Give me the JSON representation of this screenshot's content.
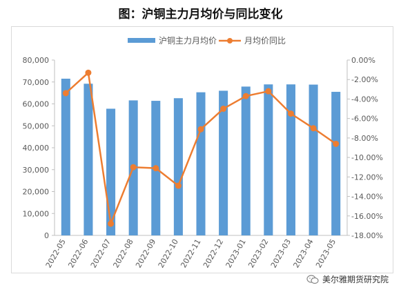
{
  "title": "图：沪铜主力月均价与同比变化",
  "watermark": {
    "text": "美尔雅期货研究院",
    "icon": "wechat-icon"
  },
  "colors": {
    "bar": "#5b9bd5",
    "line": "#ed7d31",
    "axis_text": "#595959",
    "axis_line": "#bfbfbf"
  },
  "chart_data": {
    "type": "bar+line",
    "categories": [
      "2022-05",
      "2022-06",
      "2022-07",
      "2022-08",
      "2022-09",
      "2022-10",
      "2022-11",
      "2022-12",
      "2023-01",
      "2023-02",
      "2023-03",
      "2023-04",
      "2023-05"
    ],
    "series": [
      {
        "name": "沪铜主力月均价",
        "type": "bar",
        "axis": "left",
        "values": [
          71500,
          69200,
          57800,
          61600,
          61400,
          62600,
          65300,
          66000,
          67900,
          68900,
          68900,
          68800,
          65500
        ]
      },
      {
        "name": "月均价同比",
        "type": "line",
        "axis": "right",
        "values": [
          -3.4,
          -1.3,
          -16.8,
          -11.0,
          -11.1,
          -12.9,
          -7.1,
          -5.0,
          -3.7,
          -3.2,
          -5.5,
          -7.0,
          -8.6
        ]
      }
    ],
    "y_left": {
      "lim": [
        0,
        80000
      ],
      "ticks": [
        "0",
        "10,000",
        "20,000",
        "30,000",
        "40,000",
        "50,000",
        "60,000",
        "70,000",
        "80,000"
      ]
    },
    "y_right": {
      "lim": [
        -18,
        0
      ],
      "ticks": [
        "0.00%",
        "-2.00%",
        "-4.00%",
        "-6.00%",
        "-8.00%",
        "-10.00%",
        "-12.00%",
        "-14.00%",
        "-16.00%",
        "-18.00%"
      ]
    },
    "legend_position": "top-center",
    "grid": false
  }
}
